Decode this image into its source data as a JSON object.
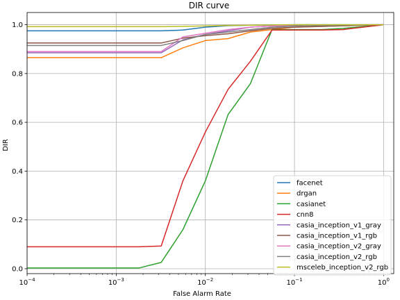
{
  "chart_data": {
    "type": "line",
    "title": "DIR curve",
    "xlabel": "False Alarm Rate",
    "ylabel": "DIR",
    "xscale": "log",
    "xlim": [
      0.0001,
      1.3
    ],
    "ylim": [
      -0.02,
      1.05
    ],
    "xticks": [
      {
        "value": 0.0001,
        "base": "10",
        "exp": "−4"
      },
      {
        "value": 0.001,
        "base": "10",
        "exp": "−3"
      },
      {
        "value": 0.01,
        "base": "10",
        "exp": "−2"
      },
      {
        "value": 0.1,
        "base": "10",
        "exp": "−1"
      },
      {
        "value": 1,
        "base": "10",
        "exp": "0"
      }
    ],
    "yticks": [
      "0.0",
      "0.2",
      "0.4",
      "0.6",
      "0.8",
      "1.0"
    ],
    "grid": true,
    "legend_position": "lower-right",
    "series": [
      {
        "name": "facenet",
        "color": "#1f77b4",
        "points": [
          [
            0.0001,
            0.975
          ],
          [
            0.0032,
            0.975
          ],
          [
            0.0056,
            0.978
          ],
          [
            0.01,
            0.99
          ],
          [
            0.018,
            0.996
          ],
          [
            0.032,
            0.998
          ],
          [
            0.056,
            0.999
          ],
          [
            0.1,
            1.0
          ],
          [
            1,
            1.0
          ]
        ]
      },
      {
        "name": "drgan",
        "color": "#ff7f0e",
        "points": [
          [
            0.0001,
            0.865
          ],
          [
            0.0032,
            0.865
          ],
          [
            0.0056,
            0.905
          ],
          [
            0.01,
            0.935
          ],
          [
            0.018,
            0.943
          ],
          [
            0.032,
            0.97
          ],
          [
            0.056,
            0.98
          ],
          [
            0.1,
            0.99
          ],
          [
            1,
            1.0
          ]
        ]
      },
      {
        "name": "casianet",
        "color": "#2ca02c",
        "points": [
          [
            0.0001,
            0.003
          ],
          [
            0.0018,
            0.003
          ],
          [
            0.0032,
            0.026
          ],
          [
            0.0056,
            0.16
          ],
          [
            0.01,
            0.36
          ],
          [
            0.018,
            0.632
          ],
          [
            0.032,
            0.758
          ],
          [
            0.056,
            0.98
          ],
          [
            0.1,
            0.98
          ],
          [
            0.2,
            0.98
          ],
          [
            0.35,
            0.985
          ],
          [
            1,
            1.0
          ]
        ]
      },
      {
        "name": "cnn8",
        "color": "#d62728",
        "points": [
          [
            0.0001,
            0.09
          ],
          [
            0.0018,
            0.09
          ],
          [
            0.0032,
            0.093
          ],
          [
            0.0056,
            0.36
          ],
          [
            0.01,
            0.56
          ],
          [
            0.018,
            0.735
          ],
          [
            0.032,
            0.85
          ],
          [
            0.056,
            0.978
          ],
          [
            0.1,
            0.978
          ],
          [
            0.2,
            0.978
          ],
          [
            0.35,
            0.98
          ],
          [
            1,
            1.0
          ]
        ]
      },
      {
        "name": "casia_inception_v1_gray",
        "color": "#9467bd",
        "points": [
          [
            0.0001,
            0.885
          ],
          [
            0.0032,
            0.885
          ],
          [
            0.0056,
            0.938
          ],
          [
            0.01,
            0.96
          ],
          [
            0.018,
            0.975
          ],
          [
            0.032,
            0.99
          ],
          [
            0.056,
            0.995
          ],
          [
            0.1,
            0.998
          ],
          [
            1,
            1.0
          ]
        ]
      },
      {
        "name": "casia_inception_v1_rgb",
        "color": "#8c564b",
        "points": [
          [
            0.0001,
            0.925
          ],
          [
            0.0032,
            0.925
          ],
          [
            0.0056,
            0.945
          ],
          [
            0.01,
            0.955
          ],
          [
            0.018,
            0.963
          ],
          [
            0.032,
            0.975
          ],
          [
            0.056,
            0.985
          ],
          [
            0.1,
            0.99
          ],
          [
            1,
            1.0
          ]
        ]
      },
      {
        "name": "casia_inception_v2_gray",
        "color": "#e377c2",
        "points": [
          [
            0.0001,
            0.89
          ],
          [
            0.0032,
            0.89
          ],
          [
            0.0056,
            0.95
          ],
          [
            0.01,
            0.965
          ],
          [
            0.018,
            0.98
          ],
          [
            0.032,
            0.99
          ],
          [
            0.056,
            0.995
          ],
          [
            0.1,
            0.998
          ],
          [
            1,
            1.0
          ]
        ]
      },
      {
        "name": "casia_inception_v2_rgb",
        "color": "#7f7f7f",
        "points": [
          [
            0.0001,
            0.915
          ],
          [
            0.0032,
            0.915
          ],
          [
            0.0056,
            0.935
          ],
          [
            0.01,
            0.96
          ],
          [
            0.018,
            0.97
          ],
          [
            0.032,
            0.98
          ],
          [
            0.056,
            0.99
          ],
          [
            0.1,
            0.995
          ],
          [
            1,
            1.0
          ]
        ]
      },
      {
        "name": "msceleb_inception_v2_rgb",
        "color": "#bcbd22",
        "points": [
          [
            0.0001,
            0.992
          ],
          [
            0.0032,
            0.992
          ],
          [
            0.0056,
            0.993
          ],
          [
            0.01,
            0.995
          ],
          [
            0.018,
            0.997
          ],
          [
            0.032,
            0.998
          ],
          [
            0.056,
            0.999
          ],
          [
            0.1,
            1.0
          ],
          [
            1,
            1.0
          ]
        ]
      }
    ]
  }
}
